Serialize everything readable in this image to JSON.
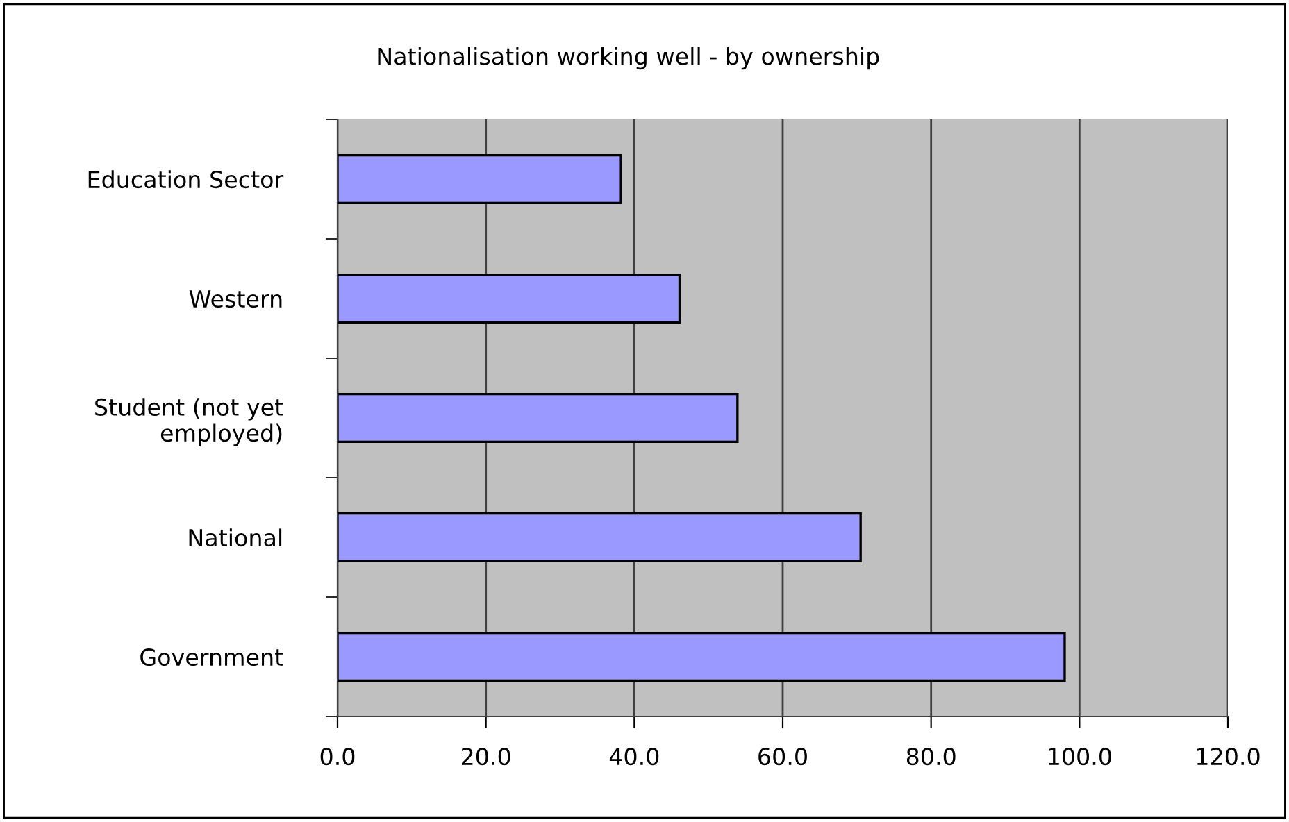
{
  "chart_data": {
    "type": "bar",
    "orientation": "horizontal",
    "title": "Nationalisation working well - by ownership",
    "categories": [
      "Education Sector",
      "Western",
      "Student (not yet\nemployed)",
      "National",
      "Government"
    ],
    "values": [
      38.2,
      46.1,
      53.9,
      70.5,
      98.0
    ],
    "color": "#9999ff",
    "xlim": [
      0,
      120
    ],
    "xticks": [
      {
        "value": 0,
        "label": "0.0"
      },
      {
        "value": 20,
        "label": "20.0"
      },
      {
        "value": 40,
        "label": "40.0"
      },
      {
        "value": 60,
        "label": "60.0"
      },
      {
        "value": 80,
        "label": "80.0"
      },
      {
        "value": 100,
        "label": "100.0"
      },
      {
        "value": 120,
        "label": "120.0"
      }
    ],
    "grid": "x",
    "legend": false
  }
}
